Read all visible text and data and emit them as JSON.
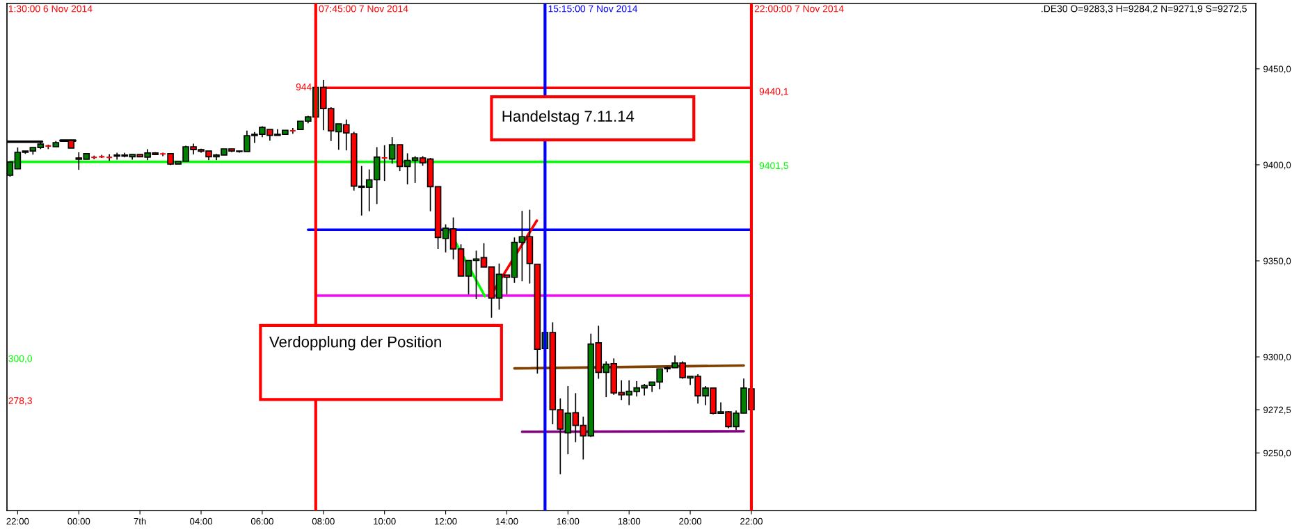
{
  "chart_data": {
    "type": "candlestick",
    "x": [
      "2014-11-06T21:45",
      "2014-11-06T22:00",
      "2014-11-06T22:15",
      "2014-11-06T22:30",
      "2014-11-06T22:45",
      "2014-11-06T23:00",
      "2014-11-06T23:15",
      "2014-11-06T23:45",
      "2014-11-07T00:00",
      "2014-11-07T00:15",
      "2014-11-07T00:30",
      "2014-11-07T00:45",
      "2014-11-07T01:00",
      "2014-11-07T01:15",
      "2014-11-07T01:30",
      "2014-11-07T01:45",
      "2014-11-07T02:00",
      "2014-11-07T02:15",
      "2014-11-07T02:30",
      "2014-11-07T02:45",
      "2014-11-07T03:00",
      "2014-11-07T03:15",
      "2014-11-07T03:30",
      "2014-11-07T03:45",
      "2014-11-07T04:00",
      "2014-11-07T04:15",
      "2014-11-07T04:30",
      "2014-11-07T04:45",
      "2014-11-07T05:00",
      "2014-11-07T05:15",
      "2014-11-07T05:30",
      "2014-11-07T05:45",
      "2014-11-07T06:00",
      "2014-11-07T06:15",
      "2014-11-07T06:30",
      "2014-11-07T06:45",
      "2014-11-07T07:00",
      "2014-11-07T07:15",
      "2014-11-07T07:30",
      "2014-11-07T07:45",
      "2014-11-07T08:00",
      "2014-11-07T08:15",
      "2014-11-07T08:30",
      "2014-11-07T08:45",
      "2014-11-07T09:00",
      "2014-11-07T09:15",
      "2014-11-07T09:30",
      "2014-11-07T09:45",
      "2014-11-07T10:00",
      "2014-11-07T10:15",
      "2014-11-07T10:30",
      "2014-11-07T10:45",
      "2014-11-07T11:00",
      "2014-11-07T11:15",
      "2014-11-07T11:30",
      "2014-11-07T11:45",
      "2014-11-07T12:00",
      "2014-11-07T12:15",
      "2014-11-07T12:30",
      "2014-11-07T12:45",
      "2014-11-07T13:00",
      "2014-11-07T13:15",
      "2014-11-07T13:30",
      "2014-11-07T13:45",
      "2014-11-07T14:00",
      "2014-11-07T14:15",
      "2014-11-07T14:30",
      "2014-11-07T14:45",
      "2014-11-07T15:00",
      "2014-11-07T15:15",
      "2014-11-07T15:30",
      "2014-11-07T15:45",
      "2014-11-07T16:00",
      "2014-11-07T16:15",
      "2014-11-07T16:30",
      "2014-11-07T16:45",
      "2014-11-07T17:00",
      "2014-11-07T17:15",
      "2014-11-07T17:30",
      "2014-11-07T17:45",
      "2014-11-07T18:00",
      "2014-11-07T18:15",
      "2014-11-07T18:30",
      "2014-11-07T18:45",
      "2014-11-07T19:00",
      "2014-11-07T19:15",
      "2014-11-07T19:30",
      "2014-11-07T19:45",
      "2014-11-07T20:00",
      "2014-11-07T20:15",
      "2014-11-07T20:30",
      "2014-11-07T20:45",
      "2014-11-07T21:00",
      "2014-11-07T21:15",
      "2014-11-07T21:30",
      "2014-11-07T21:45",
      "2014-11-07T22:00"
    ],
    "ohlc": [
      [
        9394.6,
        9401.5,
        9393.8,
        9401.5
      ],
      [
        9397.9,
        9409.0,
        9397.9,
        9406.5
      ],
      [
        9406.5,
        9407.2,
        9405.7,
        9407.2
      ],
      [
        9407.2,
        9409.0,
        9405.3,
        9409.0
      ],
      [
        9409.0,
        9411.7,
        9408.2,
        9410.8
      ],
      [
        9409.8,
        9410.5,
        9408.2,
        9409.8
      ],
      [
        9409.4,
        9412.4,
        9409.4,
        9411.5
      ],
      [
        9412.6,
        9413.0,
        9408.7,
        9408.7
      ],
      [
        9403.6,
        9406.5,
        9397.4,
        9402.9
      ],
      [
        9402.9,
        9405.8,
        9402.9,
        9405.8
      ],
      [
        9403.9,
        9404.8,
        9402.9,
        9403.9
      ],
      [
        9404.2,
        9405.2,
        9403.6,
        9404.2
      ],
      [
        9403.9,
        9405.5,
        9402.1,
        9403.9
      ],
      [
        9404.5,
        9406.3,
        9402.7,
        9405.1
      ],
      [
        9405.1,
        9406.3,
        9403.9,
        9404.5
      ],
      [
        9404.2,
        9405.4,
        9402.7,
        9405.4
      ],
      [
        9405.4,
        9405.4,
        9404.2,
        9404.2
      ],
      [
        9404.0,
        9408.1,
        9402.4,
        9406.2
      ],
      [
        9406.2,
        9406.6,
        9405.4,
        9405.4
      ],
      [
        9405.7,
        9406.3,
        9404.5,
        9405.7
      ],
      [
        9405.8,
        9405.8,
        9399.9,
        9400.4
      ],
      [
        9400.4,
        9401.8,
        9400.4,
        9401.8
      ],
      [
        9401.8,
        9409.9,
        9401.8,
        9409.4
      ],
      [
        9409.4,
        9411.0,
        9405.4,
        9407.9
      ],
      [
        9407.9,
        9408.4,
        9406.3,
        9407.1
      ],
      [
        9407.2,
        9407.2,
        9402.4,
        9404.2
      ],
      [
        9404.2,
        9405.7,
        9402.4,
        9405.1
      ],
      [
        9405.1,
        9408.3,
        9405.1,
        9408.3
      ],
      [
        9408.3,
        9408.3,
        9406.6,
        9407.2
      ],
      [
        9406.9,
        9407.2,
        9406.3,
        9407.2
      ],
      [
        9406.9,
        9417.8,
        9406.9,
        9415.2
      ],
      [
        9415.2,
        9417.1,
        9411.4,
        9415.9
      ],
      [
        9415.9,
        9420.1,
        9414.4,
        9419.5
      ],
      [
        9418.4,
        9418.4,
        9412.6,
        9415.3
      ],
      [
        9415.3,
        9418.5,
        9415.3,
        9415.9
      ],
      [
        9415.9,
        9418.0,
        9415.9,
        9418.0
      ],
      [
        9417.7,
        9419.2,
        9416.2,
        9417.7
      ],
      [
        9418.4,
        9422.7,
        9418.4,
        9422.7
      ],
      [
        9422.7,
        9425.5,
        9421.6,
        9424.9
      ],
      [
        9424.9,
        9440.3,
        9424.9,
        9440.3
      ],
      [
        9440.3,
        9444.2,
        9418.0,
        9429.3
      ],
      [
        9429.3,
        9430.0,
        9412.4,
        9417.7
      ],
      [
        9417.2,
        9421.3,
        9407.8,
        9421.3
      ],
      [
        9420.9,
        9423.6,
        9407.5,
        9416.6
      ],
      [
        9416.2,
        9417.2,
        9386.6,
        9388.9
      ],
      [
        9388.3,
        9399.4,
        9373.6,
        9388.9
      ],
      [
        9388.3,
        9397.6,
        9375.8,
        9392.2
      ],
      [
        9392.2,
        9409.2,
        9379.6,
        9404.0
      ],
      [
        9403.6,
        9410.2,
        9391.6,
        9403.6
      ],
      [
        9403.0,
        9414.4,
        9400.6,
        9410.5
      ],
      [
        9410.5,
        9410.5,
        9396.7,
        9399.1
      ],
      [
        9399.1,
        9406.0,
        9389.8,
        9402.3
      ],
      [
        9402.3,
        9404.5,
        9390.6,
        9403.6
      ],
      [
        9403.6,
        9404.5,
        9399.5,
        9401.0
      ],
      [
        9403.0,
        9403.6,
        9375.8,
        9388.6
      ],
      [
        9388.6,
        9388.6,
        9356.2,
        9362.2
      ],
      [
        9361.6,
        9369.0,
        9354.4,
        9367.0
      ],
      [
        9366.6,
        9372.6,
        9350.8,
        9356.2
      ],
      [
        9356.2,
        9358.6,
        9342.1,
        9342.1
      ],
      [
        9342.1,
        9350.2,
        9332.5,
        9350.2
      ],
      [
        9350.2,
        9355.3,
        9330.1,
        9351.0
      ],
      [
        9351.7,
        9359.2,
        9346.8,
        9346.8
      ],
      [
        9346.8,
        9346.8,
        9320.4,
        9330.6
      ],
      [
        9330.6,
        9348.6,
        9324.6,
        9343.0
      ],
      [
        9342.6,
        9342.6,
        9332.5,
        9341.4
      ],
      [
        9341.4,
        9362.2,
        9338.5,
        9359.6
      ],
      [
        9359.6,
        9376.0,
        9339.4,
        9362.6
      ],
      [
        9362.6,
        9376.6,
        9338.2,
        9348.6
      ],
      [
        9348.2,
        9348.2,
        9291.3,
        9304.0
      ],
      [
        9304.3,
        9312.7,
        9304.3,
        9312.7
      ],
      [
        9312.7,
        9318.0,
        9264.9,
        9272.5
      ],
      [
        9272.5,
        9278.4,
        9238.9,
        9262.4
      ],
      [
        9260.4,
        9284.8,
        9249.3,
        9270.7
      ],
      [
        9270.9,
        9281.1,
        9255.6,
        9264.3
      ],
      [
        9264.3,
        9268.9,
        9246.6,
        9258.9
      ],
      [
        9258.9,
        9312.1,
        9258.3,
        9306.7
      ],
      [
        9307.3,
        9316.2,
        9288.6,
        9291.9
      ],
      [
        9291.9,
        9297.7,
        9279.0,
        9296.2
      ],
      [
        9296.5,
        9299.2,
        9280.2,
        9281.2
      ],
      [
        9281.4,
        9287.8,
        9277.5,
        9280.2
      ],
      [
        9280.2,
        9287.8,
        9274.9,
        9282.1
      ],
      [
        9282.0,
        9287.4,
        9279.4,
        9283.9
      ],
      [
        9283.9,
        9285.9,
        9279.9,
        9285.1
      ],
      [
        9285.1,
        9286.9,
        9281.7,
        9286.9
      ],
      [
        9286.9,
        9293.8,
        9283.2,
        9293.8
      ],
      [
        9293.8,
        9295.0,
        9292.0,
        9294.4
      ],
      [
        9294.4,
        9300.7,
        9294.4,
        9296.8
      ],
      [
        9296.8,
        9297.7,
        9288.6,
        9289.2
      ],
      [
        9289.0,
        9289.9,
        9285.4,
        9289.9
      ],
      [
        9289.9,
        9291.0,
        9275.7,
        9279.7
      ],
      [
        9279.7,
        9284.8,
        9274.9,
        9283.8
      ],
      [
        9283.8,
        9284.1,
        9270.1,
        9270.6
      ],
      [
        9270.6,
        9276.3,
        9270.6,
        9271.4
      ],
      [
        9271.4,
        9271.8,
        9262.8,
        9263.7
      ],
      [
        9263.7,
        9272.1,
        9261.9,
        9270.7
      ],
      [
        9270.7,
        9288.7,
        9270.7,
        9283.8
      ],
      [
        9283.3,
        9284.2,
        9271.9,
        9272.5
      ]
    ],
    "series": [
      {
        "type": "line",
        "color": "#ff0000",
        "x": [
          "2014-11-07T08:00",
          "2014-11-07T22:00"
        ],
        "values": [
          9440.1,
          9440.1
        ]
      },
      {
        "type": "line",
        "color": "#00ff00",
        "x": [
          "2014-11-06T21:45",
          "2014-11-07T22:00"
        ],
        "values": [
          9401.5,
          9401.5
        ]
      },
      {
        "type": "line",
        "color": "#0000ff",
        "x": [
          "2014-11-07T07:30",
          "2014-11-07T22:00"
        ],
        "values": [
          9366.2,
          9366.2
        ]
      },
      {
        "type": "line",
        "color": "#ff00ff",
        "x": [
          "2014-11-07T07:45",
          "2014-11-07T22:00"
        ],
        "values": [
          9331.9,
          9331.9
        ]
      },
      {
        "type": "line",
        "color": "#804000",
        "x": [
          "2014-11-07T14:15",
          "2014-11-07T21:45"
        ],
        "values": [
          9294.0,
          9295.5
        ]
      },
      {
        "type": "line",
        "color": "#800080",
        "x": [
          "2014-11-07T14:30",
          "2014-11-07T21:45"
        ],
        "values": [
          9261.0,
          9261.3
        ]
      },
      {
        "type": "line",
        "color": "#000000",
        "x": [
          "2014-11-06T21:39",
          "2014-11-06T22:48",
          "2014-11-06T23:06",
          "2014-11-06T23:24",
          "2014-11-06T23:53"
        ],
        "values": [
          9412.0,
          9412.0,
          null,
          9412.6,
          9412.6
        ]
      },
      {
        "type": "line",
        "color": "#00ff00",
        "x": [
          "2014-11-07T12:08",
          "2014-11-07T13:17"
        ],
        "values": [
          9365.2,
          9331.6
        ]
      },
      {
        "type": "line",
        "color": "#ff0000",
        "x": [
          "2014-11-07T13:29",
          "2014-11-07T14:59"
        ],
        "values": [
          9332.2,
          9371.0
        ]
      }
    ],
    "xlim": [
      "2014-11-06T21:39",
      "2014-11-08T14:30"
    ],
    "xticks": [
      {
        "value": "2014-11-06T22:00",
        "label": "22:00"
      },
      {
        "value": "2014-11-07T00:00",
        "label": "00:00"
      },
      {
        "value": "2014-11-07T02:00",
        "label": "7th"
      },
      {
        "value": "2014-11-07T04:00",
        "label": "04:00"
      },
      {
        "value": "2014-11-07T06:00",
        "label": "06:00"
      },
      {
        "value": "2014-11-07T08:00",
        "label": "08:00"
      },
      {
        "value": "2014-11-07T10:00",
        "label": "10:00"
      },
      {
        "value": "2014-11-07T12:00",
        "label": "12:00"
      },
      {
        "value": "2014-11-07T14:00",
        "label": "14:00"
      },
      {
        "value": "2014-11-07T16:00",
        "label": "16:00"
      },
      {
        "value": "2014-11-07T18:00",
        "label": "18:00"
      },
      {
        "value": "2014-11-07T20:00",
        "label": "20:00"
      },
      {
        "value": "2014-11-07T22:00",
        "label": "22:00"
      }
    ],
    "ylim": [
      9220,
      9484
    ],
    "yticks": [
      {
        "value": 9250,
        "label": "9250,0"
      },
      {
        "value": 9272.5,
        "label": "9272,5"
      },
      {
        "value": 9300,
        "label": "9300,0"
      },
      {
        "value": 9350,
        "label": "9350,0"
      },
      {
        "value": 9400,
        "label": "9400,0"
      },
      {
        "value": 9450,
        "label": "9450,0"
      }
    ],
    "ref_lines": [
      {
        "axis": "x",
        "value": "2014-11-07T07:45",
        "label": "07:45:00 7 Nov 2014",
        "color": "#ff0000"
      },
      {
        "axis": "x",
        "value": "2014-11-07T15:15",
        "label": "15:15:00 7 Nov 2014",
        "color": "#0000ff"
      },
      {
        "axis": "x",
        "value": "2014-11-07T22:00",
        "label": "22:00:00 7 Nov 2014",
        "color": "#ff0000"
      }
    ],
    "annotations": [
      "1:30:00 6 Nov 2014",
      ".DE30 O=9283,3 H=9284,2 N=9271,9 S=9272,5",
      {
        "text": "944",
        "x": "2014-11-07T07:45",
        "y": 9440.1
      },
      {
        "text": "9440,1",
        "x": "2014-11-07T22:00",
        "y": 9440.1
      },
      {
        "text": "9401,5",
        "x": "2014-11-07T22:00",
        "y": 9401.5
      },
      "300,0",
      "278,3",
      "Handelstag 7.11.14",
      "Verdopplung der Position"
    ],
    "grid": false
  }
}
